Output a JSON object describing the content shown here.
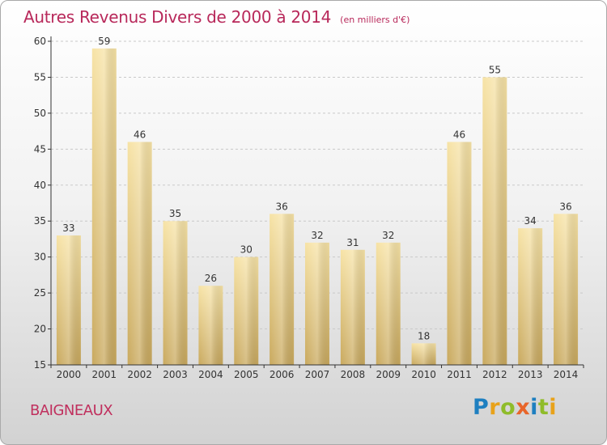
{
  "header": {
    "title": "Autres Revenus Divers de 2000 à 2014",
    "subtitle": "(en milliers d'€)"
  },
  "footer": {
    "commune": "BAIGNEAUX",
    "brand": "Proxiti",
    "brand_letters": [
      {
        "ch": "P",
        "color": "#1e7fc0"
      },
      {
        "ch": "r",
        "color": "#e8a21a"
      },
      {
        "ch": "o",
        "color": "#8fbc2a"
      },
      {
        "ch": "x",
        "color": "#e8652a"
      },
      {
        "ch": "i",
        "color": "#1e7fc0"
      },
      {
        "ch": "t",
        "color": "#8fbc2a"
      },
      {
        "ch": "i",
        "color": "#e8a21a"
      }
    ]
  },
  "colors": {
    "title": "#b8285a",
    "bar_light": "#f6e0a0",
    "bar_dark": "#c8a85a",
    "axis": "#333333"
  },
  "chart_data": {
    "type": "bar",
    "title": "Autres Revenus Divers de 2000 à 2014",
    "subtitle": "(en milliers d'€)",
    "categories": [
      "2000",
      "2001",
      "2002",
      "2003",
      "2004",
      "2005",
      "2006",
      "2007",
      "2008",
      "2009",
      "2010",
      "2011",
      "2012",
      "2013",
      "2014"
    ],
    "values": [
      33,
      59,
      46,
      35,
      26,
      30,
      36,
      32,
      31,
      32,
      18,
      46,
      55,
      34,
      36
    ],
    "ylim": [
      15,
      60
    ],
    "yticks": [
      15,
      20,
      25,
      30,
      35,
      40,
      45,
      50,
      55,
      60
    ],
    "grid": true,
    "xlabel": "",
    "ylabel": ""
  }
}
